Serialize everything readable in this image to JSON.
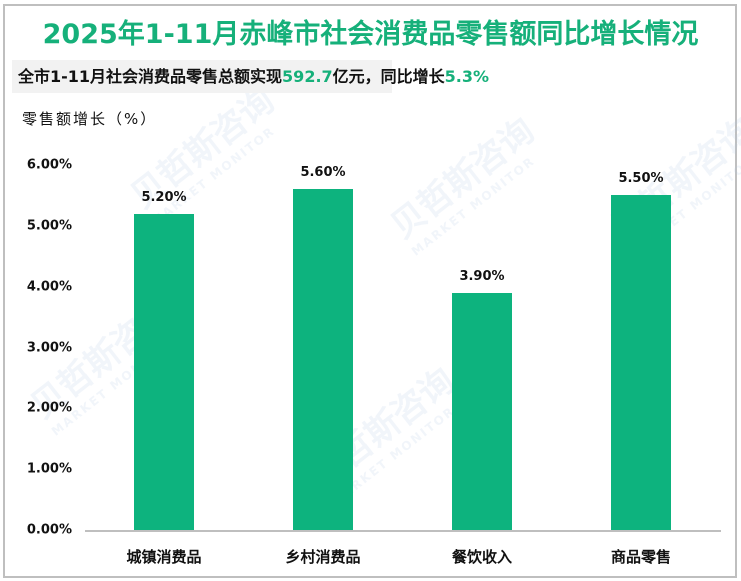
{
  "title": "2025年1-11月赤峰市社会消费品零售额同比增长情况",
  "subtitle": {
    "prefix": "全市1-11月社会消费品零售总额实现",
    "amount": "592.7",
    "middle": "亿元，同比增长",
    "growth": "5.3%"
  },
  "watermark": {
    "cn": "贝哲斯咨询",
    "en": "MARKET MONITOR"
  },
  "colors": {
    "accent": "#16b07a",
    "bar": "#0db37e",
    "axis": "#bfbfbf"
  },
  "chart_data": {
    "type": "bar",
    "title": "2025年1-11月赤峰市社会消费品零售额同比增长情况",
    "xlabel": "",
    "ylabel": "零售额增长（%）",
    "ylim": [
      0,
      6
    ],
    "yticks": [
      "0.00%",
      "1.00%",
      "2.00%",
      "3.00%",
      "4.00%",
      "5.00%",
      "6.00%"
    ],
    "grid": false,
    "legend": "none",
    "categories": [
      "城镇消费品",
      "乡村消费品",
      "餐饮收入",
      "商品零售"
    ],
    "values": [
      5.2,
      5.6,
      3.9,
      5.5
    ],
    "labels": [
      "5.20%",
      "5.60%",
      "3.90%",
      "5.50%"
    ]
  }
}
